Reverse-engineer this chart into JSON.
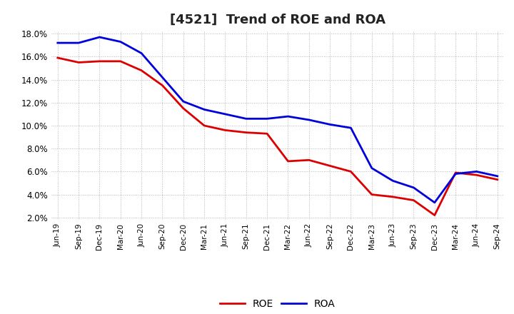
{
  "title": "[4521]  Trend of ROE and ROA",
  "xtick_labels": [
    "Jun-19",
    "Sep-19",
    "Dec-19",
    "Mar-20",
    "Jun-20",
    "Sep-20",
    "Dec-20",
    "Mar-21",
    "Jun-21",
    "Sep-21",
    "Dec-21",
    "Mar-22",
    "Jun-22",
    "Sep-22",
    "Dec-22",
    "Mar-23",
    "Jun-23",
    "Sep-23",
    "Dec-23",
    "Mar-24",
    "Jun-24",
    "Sep-24"
  ],
  "ROE": [
    15.9,
    15.5,
    15.6,
    15.6,
    14.8,
    13.5,
    11.5,
    10.0,
    9.6,
    9.4,
    9.3,
    6.9,
    7.0,
    6.5,
    6.0,
    4.0,
    3.8,
    3.5,
    2.2,
    5.9,
    5.7,
    5.3
  ],
  "ROA": [
    17.2,
    17.2,
    17.7,
    17.3,
    16.3,
    14.2,
    12.1,
    11.4,
    11.0,
    10.6,
    10.6,
    10.8,
    10.5,
    10.1,
    9.8,
    6.3,
    5.2,
    4.6,
    3.3,
    5.8,
    6.0,
    5.6
  ],
  "ROE_color": "#dd0000",
  "ROA_color": "#0000dd",
  "ylim_min": 1.8,
  "ylim_max": 18.2,
  "ytick_values": [
    2.0,
    4.0,
    6.0,
    8.0,
    10.0,
    12.0,
    14.0,
    16.0,
    18.0
  ],
  "bg_color": "#ffffff",
  "grid_color": "#999999",
  "title_fontsize": 13,
  "legend_labels": [
    "ROE",
    "ROA"
  ],
  "line_width": 2.0
}
